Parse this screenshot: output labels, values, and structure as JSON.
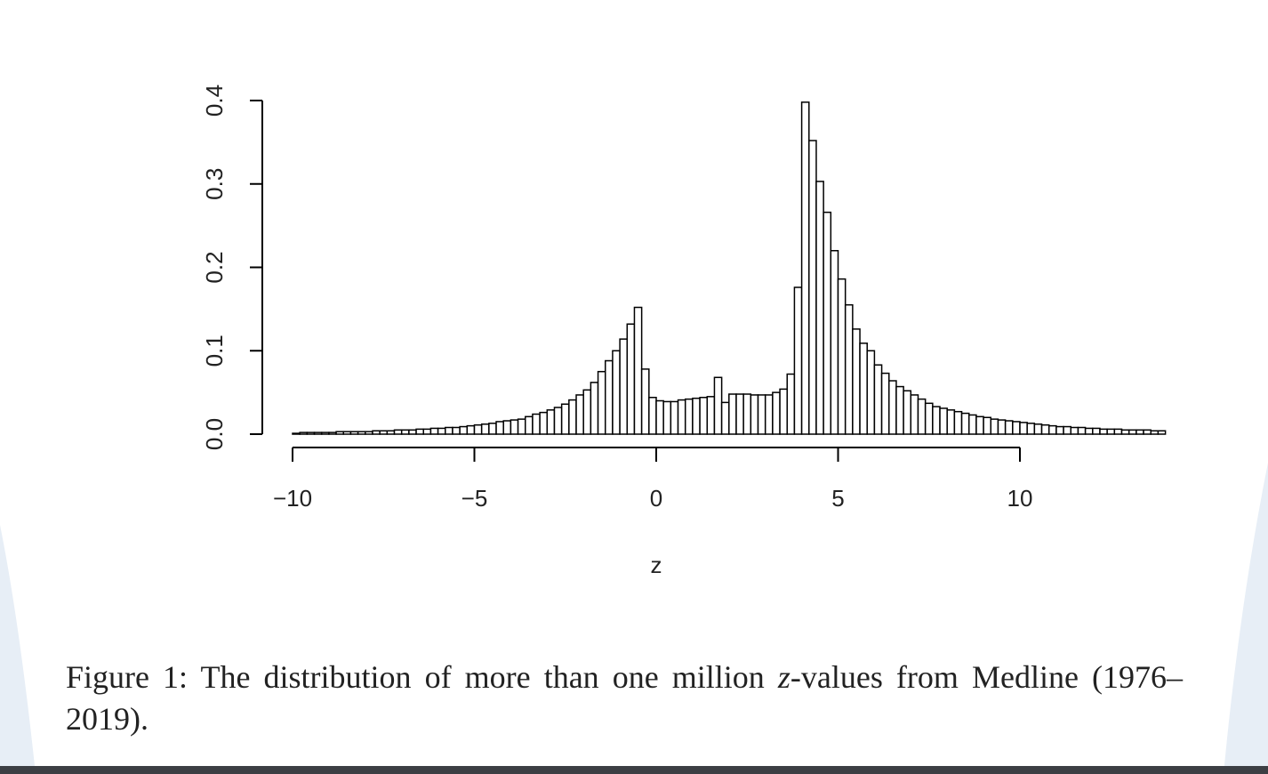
{
  "colors": {
    "viewer_bg": "#e7eef6",
    "bottom_bar": "#3c3f44",
    "bar_fill": "#ffffff",
    "bar_stroke": "#000000"
  },
  "caption": {
    "label": "Figure 1:",
    "text_before": "The distribution of more than one million",
    "variable": "z",
    "text_after": "-values from Medline (1976–2019)."
  },
  "chart_data": {
    "type": "bar",
    "subtype": "histogram",
    "xlabel": "z",
    "ylabel": "",
    "xlim": [
      -10,
      10
    ],
    "ylim": [
      0,
      0.4
    ],
    "x_ticks": [
      -10,
      -5,
      0,
      5,
      10
    ],
    "x_tick_labels": [
      "−10",
      "−5",
      "0",
      "5",
      "10"
    ],
    "y_ticks": [
      0,
      0.1,
      0.2,
      0.3,
      0.4
    ],
    "y_tick_labels": [
      "0.0",
      "0.1",
      "0.2",
      "0.3",
      "0.4"
    ],
    "bin_width": 0.2,
    "bin_start": -10,
    "values": [
      0.001,
      0.002,
      0.002,
      0.002,
      0.002,
      0.002,
      0.003,
      0.003,
      0.003,
      0.003,
      0.003,
      0.004,
      0.004,
      0.004,
      0.005,
      0.005,
      0.005,
      0.006,
      0.006,
      0.007,
      0.007,
      0.008,
      0.008,
      0.009,
      0.01,
      0.011,
      0.012,
      0.013,
      0.015,
      0.016,
      0.017,
      0.018,
      0.021,
      0.024,
      0.026,
      0.029,
      0.032,
      0.036,
      0.041,
      0.047,
      0.053,
      0.062,
      0.075,
      0.088,
      0.1,
      0.114,
      0.132,
      0.152,
      0.078,
      0.044,
      0.04,
      0.039,
      0.039,
      0.041,
      0.042,
      0.043,
      0.044,
      0.045,
      0.068,
      0.038,
      0.048,
      0.048,
      0.048,
      0.047,
      0.047,
      0.047,
      0.05,
      0.054,
      0.072,
      0.176,
      0.398,
      0.352,
      0.303,
      0.266,
      0.22,
      0.186,
      0.155,
      0.126,
      0.109,
      0.1,
      0.083,
      0.073,
      0.064,
      0.057,
      0.052,
      0.047,
      0.042,
      0.037,
      0.033,
      0.031,
      0.029,
      0.027,
      0.025,
      0.023,
      0.021,
      0.02,
      0.018,
      0.017,
      0.016,
      0.015,
      0.014,
      0.013,
      0.012,
      0.011,
      0.01,
      0.009,
      0.009,
      0.008,
      0.008,
      0.007,
      0.007,
      0.006,
      0.006,
      0.006,
      0.005,
      0.005,
      0.005,
      0.005,
      0.004,
      0.004
    ],
    "grid": false,
    "legend": "none"
  }
}
